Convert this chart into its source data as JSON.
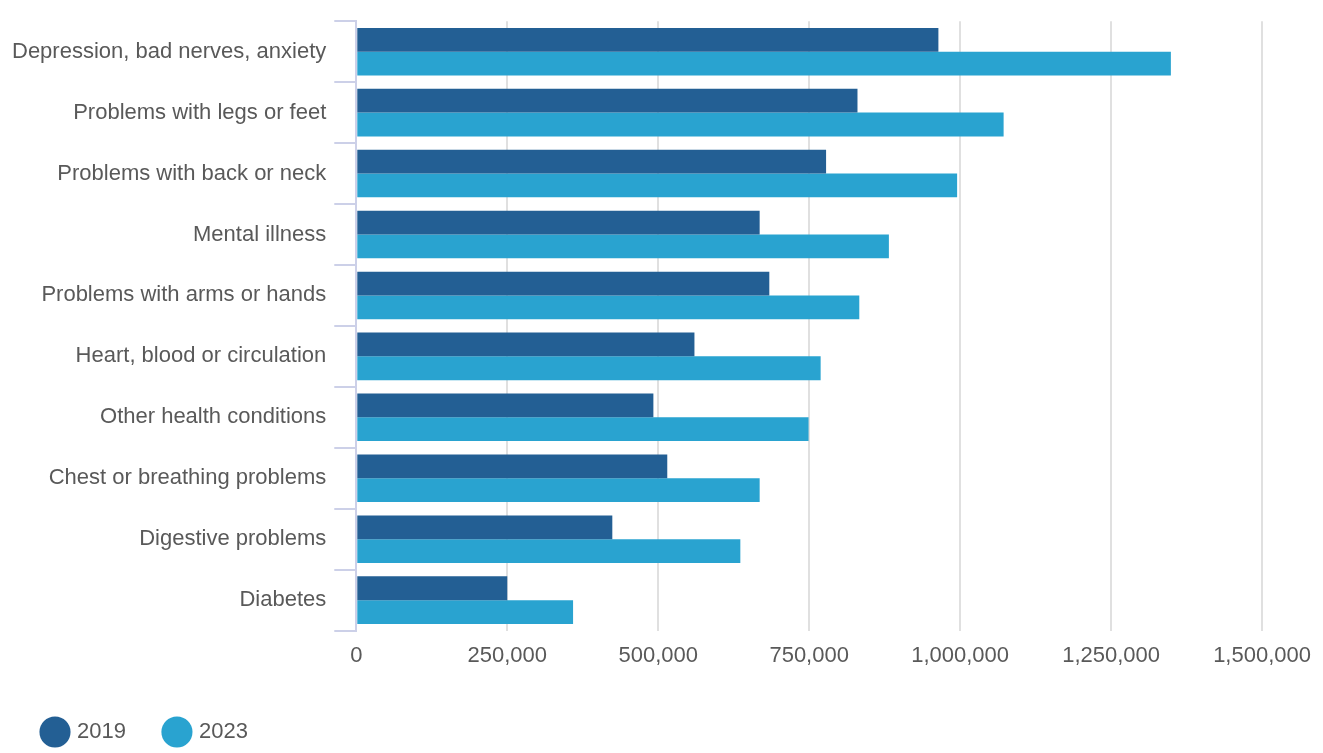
{
  "chart_data": {
    "type": "bar",
    "orientation": "horizontal",
    "categories": [
      "Depression, bad nerves, anxiety",
      "Problems with legs or feet",
      "Problems with back or neck",
      "Mental illness",
      "Problems with arms or hands",
      "Heart, blood or circulation",
      "Other health conditions",
      "Chest or breathing problems",
      "Digestive problems",
      "Diabetes"
    ],
    "series": [
      {
        "name": "2019",
        "color": "#235f94",
        "values": [
          964000,
          830000,
          778000,
          668000,
          684000,
          560000,
          492000,
          515000,
          424000,
          250000
        ]
      },
      {
        "name": "2023",
        "color": "#29a3d0",
        "values": [
          1349000,
          1072000,
          995000,
          882000,
          833000,
          769000,
          749000,
          668000,
          636000,
          359000
        ]
      }
    ],
    "xlim": [
      0,
      1500000
    ],
    "xticks": [
      {
        "value": 0,
        "label": "0"
      },
      {
        "value": 250000,
        "label": "250,000"
      },
      {
        "value": 500000,
        "label": "500,000"
      },
      {
        "value": 750000,
        "label": "750,000"
      },
      {
        "value": 1000000,
        "label": "1,000,000"
      },
      {
        "value": 1250000,
        "label": "1,250,000"
      },
      {
        "value": 1500000,
        "label": "1,500,000"
      }
    ],
    "grid": "x",
    "legend": "bottom left"
  }
}
